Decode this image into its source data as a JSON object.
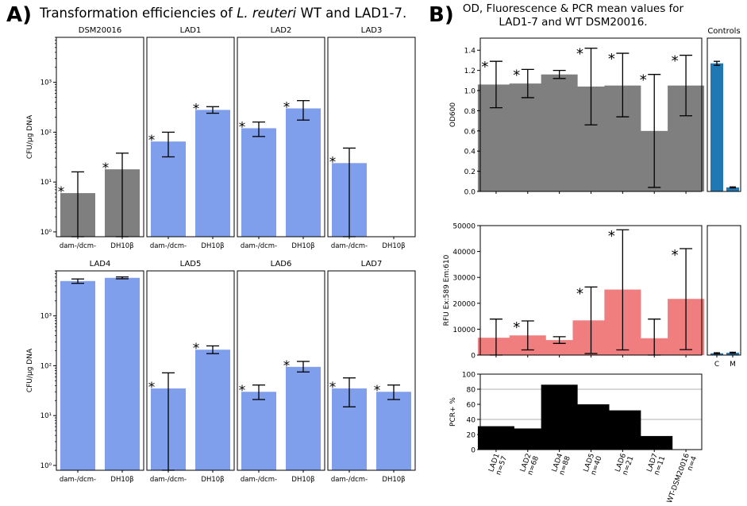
{
  "figure": {
    "panel_a_label": "A)",
    "panel_a_title_pre": "Transformation efficiencies of ",
    "panel_a_title_species": "L. reuteri",
    "panel_a_title_post": " WT and LAD1-7.",
    "panel_b_label": "B)",
    "panel_b_title_line1": "OD, Fluorescence & PCR mean values for",
    "panel_b_title_line2": "LAD1-7 and WT DSM20016."
  },
  "colors": {
    "wt_gray": "#7f7f7f",
    "lad_blue": "#7f9fec",
    "rfu_red": "#f07e7e",
    "control_blue": "#1f77b4",
    "pcr_black": "#000000"
  },
  "chart_data": [
    {
      "type": "bar",
      "panel": "A",
      "scale": "log",
      "ylabel": "CFU/µg DNA",
      "ylim": [
        0.8,
        8000
      ],
      "yticks": [
        1,
        10,
        100,
        1000
      ],
      "ytick_labels": [
        "10⁰",
        "10¹",
        "10²",
        "10³"
      ],
      "categories": [
        "dam-/dcm-",
        "DH10β"
      ],
      "subplots": [
        {
          "title": "DSM20016",
          "color": "#7f7f7f",
          "values": [
            6,
            18
          ],
          "err_low": [
            0.8,
            0.8
          ],
          "err_high": [
            16,
            38
          ],
          "sig": [
            true,
            true
          ]
        },
        {
          "title": "LAD1",
          "color": "#7f9fec",
          "values": [
            65,
            280
          ],
          "err_low": [
            32,
            240
          ],
          "err_high": [
            100,
            325
          ],
          "sig": [
            true,
            true
          ]
        },
        {
          "title": "LAD2",
          "color": "#7f9fec",
          "values": [
            120,
            300
          ],
          "err_low": [
            82,
            175
          ],
          "err_high": [
            160,
            430
          ],
          "sig": [
            true,
            true
          ]
        },
        {
          "title": "LAD3",
          "color": "#7f9fec",
          "values": [
            24,
            null
          ],
          "err_low": [
            0.8,
            null
          ],
          "err_high": [
            48,
            null
          ],
          "sig": [
            true,
            false
          ]
        },
        {
          "title": "LAD4",
          "color": "#7f9fec",
          "values": [
            5000,
            5800
          ],
          "err_low": [
            4500,
            5550
          ],
          "err_high": [
            5500,
            6050
          ],
          "sig": [
            false,
            false
          ]
        },
        {
          "title": "LAD5",
          "color": "#7f9fec",
          "values": [
            35,
            210
          ],
          "err_low": [
            0.8,
            175
          ],
          "err_high": [
            72,
            250
          ],
          "sig": [
            true,
            true
          ]
        },
        {
          "title": "LAD6",
          "color": "#7f9fec",
          "values": [
            30,
            95
          ],
          "err_low": [
            21,
            75
          ],
          "err_high": [
            41,
            122
          ],
          "sig": [
            true,
            true
          ]
        },
        {
          "title": "LAD7",
          "color": "#7f9fec",
          "values": [
            35,
            30
          ],
          "err_low": [
            15,
            21
          ],
          "err_high": [
            57,
            41
          ],
          "sig": [
            true,
            true
          ]
        }
      ]
    },
    {
      "type": "bar",
      "panel": "B-OD",
      "ylabel": "OD600",
      "ylim": [
        0,
        1.52
      ],
      "yticks": [
        0.0,
        0.2,
        0.4,
        0.6,
        0.8,
        1.0,
        1.2,
        1.4
      ],
      "ytick_labels": [
        "0.0",
        "0.2",
        "0.4",
        "0.6",
        "0.8",
        "1.0",
        "1.2",
        "1.4"
      ],
      "categories": [
        "LAD1",
        "LAD2",
        "LAD4",
        "LAD5",
        "LAD6",
        "LAD7",
        "WT-DSM20016"
      ],
      "values": [
        1.06,
        1.07,
        1.16,
        1.04,
        1.05,
        0.6,
        1.05
      ],
      "err_low": [
        0.83,
        0.93,
        1.12,
        0.66,
        0.74,
        0.04,
        0.75
      ],
      "err_high": [
        1.29,
        1.21,
        1.2,
        1.42,
        1.37,
        1.16,
        1.35
      ],
      "sig": [
        true,
        true,
        false,
        true,
        true,
        true,
        true
      ],
      "controls": {
        "title": "Controls",
        "categories": [
          "C",
          "M"
        ],
        "values": [
          1.27,
          0.04
        ],
        "err_low": [
          1.25,
          0.035
        ],
        "err_high": [
          1.29,
          0.045
        ]
      }
    },
    {
      "type": "bar",
      "panel": "B-RFU",
      "ylabel": "RFU Ex:589 Em:610",
      "ylim": [
        0,
        50000
      ],
      "yticks": [
        0,
        10000,
        20000,
        30000,
        40000,
        50000
      ],
      "ytick_labels": [
        "0",
        "10000",
        "20000",
        "30000",
        "40000",
        "50000"
      ],
      "categories": [
        "LAD1",
        "LAD2",
        "LAD4",
        "LAD5",
        "LAD6",
        "LAD7",
        "WT-DSM20016"
      ],
      "values": [
        6700,
        7600,
        5800,
        13400,
        25300,
        6500,
        21700
      ],
      "err_low": [
        0,
        2000,
        4500,
        600,
        2000,
        0,
        2100
      ],
      "err_high": [
        13900,
        13200,
        7100,
        26300,
        48400,
        13900,
        41100
      ],
      "sig": [
        false,
        true,
        false,
        true,
        true,
        false,
        true
      ],
      "controls": {
        "categories": [
          "C",
          "M"
        ],
        "values": [
          700,
          900
        ],
        "err_low": [
          500,
          700
        ],
        "err_high": [
          900,
          1100
        ]
      }
    },
    {
      "type": "bar",
      "panel": "B-PCR",
      "ylabel": "PCR+ %",
      "ylim": [
        0,
        100
      ],
      "yticks": [
        0,
        20,
        40,
        60,
        80,
        100
      ],
      "ytick_labels": [
        "0",
        "20",
        "40",
        "60",
        "80",
        "100"
      ],
      "gridlines": [
        40,
        80
      ],
      "categories": [
        "LAD1",
        "LAD2",
        "LAD4",
        "LAD5",
        "LAD6",
        "LAD7",
        "WT-DSM20016"
      ],
      "n_labels": [
        "n=57",
        "n=68",
        "n=88",
        "n=40",
        "n=21",
        "n=11",
        "n=4"
      ],
      "values": [
        31,
        28,
        86,
        60,
        52,
        18,
        0
      ]
    }
  ]
}
